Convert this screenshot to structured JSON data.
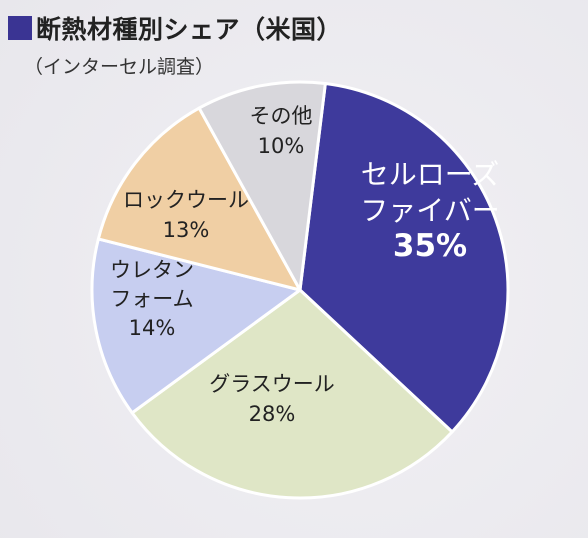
{
  "title": "断熱材種別シェア（米国）",
  "subtitle": "（インターセル調査）",
  "colors": {
    "title_square": "#3a3493"
  },
  "chart_data": {
    "type": "pie",
    "title": "断熱材種別シェア（米国）",
    "subtitle": "（インターセル調査）",
    "unit": "%",
    "start_angle_deg": 7,
    "direction": "clockwise",
    "slices": [
      {
        "label": "セルローズファイバー",
        "value": 35,
        "value_label": "35%",
        "color": "#3e3a9c"
      },
      {
        "label": "グラスウール",
        "value": 28,
        "value_label": "28%",
        "color": "#dfe6c6"
      },
      {
        "label": "ウレタンフォーム",
        "value": 14,
        "value_label": "14%",
        "color": "#c7cef0"
      },
      {
        "label": "ロックウール",
        "value": 13,
        "value_label": "13%",
        "color": "#f0cfa4"
      },
      {
        "label": "その他",
        "value": 10,
        "value_label": "10%",
        "color": "#d8d7dc"
      }
    ]
  }
}
